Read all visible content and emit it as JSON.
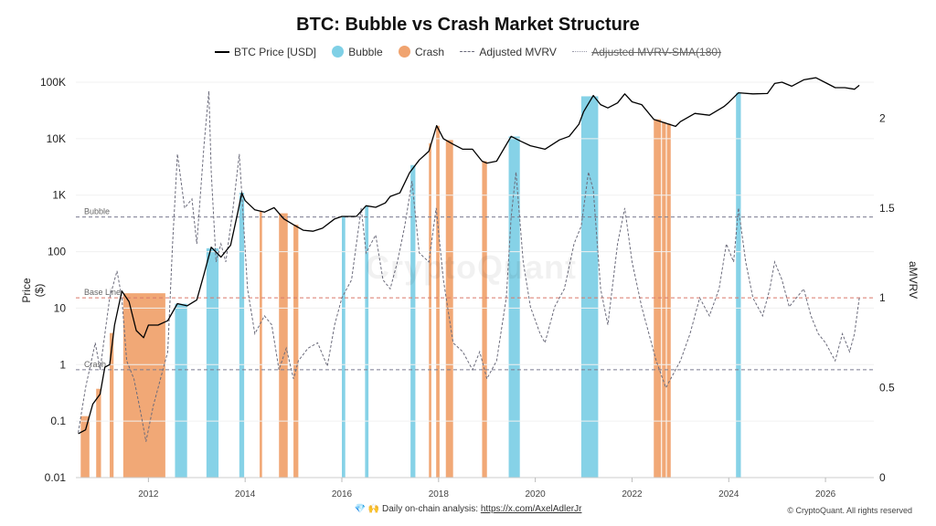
{
  "chart_data": {
    "type": "line",
    "title": "BTC: Bubble vs Crash Market Structure",
    "legend": [
      {
        "name": "BTC Price [USD]",
        "style": "line",
        "color": "#000000"
      },
      {
        "name": "Bubble",
        "style": "circle",
        "color": "#7fd0e6"
      },
      {
        "name": "Crash",
        "style": "circle",
        "color": "#f0a36f"
      },
      {
        "name": "Adjusted MVRV",
        "style": "dash",
        "color": "#6b6b7b"
      },
      {
        "name": "Adjusted MVRV-SMA(180)",
        "style": "dot",
        "color": "#9a9aaa",
        "hidden": true
      }
    ],
    "legend_position": "top-center",
    "x_axis": {
      "type": "date",
      "range": [
        "2010-07-01",
        "2026-12-31"
      ],
      "ticks": [
        "2012",
        "2014",
        "2016",
        "2018",
        "2020",
        "2022",
        "2024",
        "2026"
      ]
    },
    "y_left": {
      "label": "Price ($)",
      "scale": "log",
      "range": [
        0.01,
        100000
      ],
      "ticks": [
        "0.01",
        "0.1",
        "1",
        "10",
        "100",
        "1K",
        "10K",
        "100K"
      ]
    },
    "y_right": {
      "label": "aMVRV",
      "scale": "linear",
      "range": [
        0,
        2.2
      ],
      "ticks": [
        "0",
        "0.5",
        "1",
        "1.5",
        "2"
      ]
    },
    "thresholds": [
      {
        "label": "Bubble",
        "value": 1.45,
        "color": "#7b7b90"
      },
      {
        "label": "Base Line",
        "value": 1.0,
        "color": "#d9786a"
      },
      {
        "label": "Crash",
        "value": 0.6,
        "color": "#7b7b90"
      }
    ],
    "price_series": {
      "name": "BTC Price [USD]",
      "x": [
        2010.55,
        2010.7,
        2010.85,
        2011.0,
        2011.1,
        2011.2,
        2011.3,
        2011.45,
        2011.6,
        2011.75,
        2011.9,
        2012.0,
        2012.2,
        2012.4,
        2012.6,
        2012.8,
        2013.0,
        2013.15,
        2013.3,
        2013.5,
        2013.7,
        2013.85,
        2013.93,
        2014.0,
        2014.2,
        2014.4,
        2014.6,
        2014.8,
        2015.0,
        2015.2,
        2015.4,
        2015.6,
        2015.85,
        2016.0,
        2016.3,
        2016.5,
        2016.7,
        2016.9,
        2017.0,
        2017.2,
        2017.4,
        2017.6,
        2017.8,
        2017.96,
        2018.1,
        2018.3,
        2018.5,
        2018.7,
        2018.9,
        2019.0,
        2019.2,
        2019.5,
        2019.7,
        2019.9,
        2020.2,
        2020.5,
        2020.7,
        2020.9,
        2021.0,
        2021.2,
        2021.35,
        2021.5,
        2021.7,
        2021.85,
        2022.0,
        2022.2,
        2022.45,
        2022.6,
        2022.9,
        2023.0,
        2023.3,
        2023.6,
        2023.9,
        2024.0,
        2024.2,
        2024.5,
        2024.8,
        2024.95,
        2025.1,
        2025.3,
        2025.55,
        2025.8,
        2026.0,
        2026.2,
        2026.4,
        2026.6,
        2026.7
      ],
      "y": [
        0.06,
        0.07,
        0.2,
        0.3,
        0.9,
        1.0,
        5,
        20,
        13,
        4,
        3,
        5,
        5,
        6,
        12,
        11,
        14,
        40,
        120,
        80,
        130,
        500,
        1100,
        800,
        550,
        500,
        600,
        380,
        300,
        240,
        230,
        260,
        380,
        420,
        420,
        650,
        610,
        730,
        950,
        1100,
        2500,
        4200,
        6000,
        17000,
        10000,
        8000,
        6500,
        6500,
        4000,
        3700,
        4000,
        11000,
        9000,
        7500,
        6500,
        9500,
        11000,
        18000,
        30000,
        58000,
        40000,
        35000,
        43000,
        62000,
        45000,
        40000,
        22000,
        20000,
        16500,
        20000,
        28000,
        26000,
        37000,
        44000,
        65000,
        62000,
        63000,
        95000,
        100000,
        85000,
        110000,
        120000,
        98000,
        80000,
        80000,
        75000,
        88000
      ]
    },
    "mvrv_series": {
      "name": "Adjusted MVRV",
      "x": [
        2010.55,
        2010.7,
        2010.9,
        2011.0,
        2011.2,
        2011.35,
        2011.45,
        2011.55,
        2011.7,
        2011.85,
        2011.95,
        2012.1,
        2012.25,
        2012.4,
        2012.5,
        2012.6,
        2012.75,
        2012.9,
        2013.0,
        2013.15,
        2013.25,
        2013.3,
        2013.4,
        2013.5,
        2013.6,
        2013.75,
        2013.88,
        2013.95,
        2014.05,
        2014.2,
        2014.4,
        2014.55,
        2014.7,
        2014.85,
        2015.0,
        2015.1,
        2015.3,
        2015.5,
        2015.7,
        2015.85,
        2016.0,
        2016.2,
        2016.4,
        2016.5,
        2016.7,
        2016.85,
        2017.0,
        2017.15,
        2017.3,
        2017.45,
        2017.6,
        2017.8,
        2017.95,
        2018.1,
        2018.3,
        2018.5,
        2018.7,
        2018.85,
        2019.0,
        2019.2,
        2019.4,
        2019.5,
        2019.6,
        2019.75,
        2019.9,
        2020.1,
        2020.2,
        2020.4,
        2020.6,
        2020.8,
        2020.95,
        2021.1,
        2021.2,
        2021.35,
        2021.5,
        2021.7,
        2021.85,
        2022.0,
        2022.2,
        2022.4,
        2022.5,
        2022.7,
        2022.9,
        2023.0,
        2023.2,
        2023.4,
        2023.6,
        2023.8,
        2023.95,
        2024.1,
        2024.2,
        2024.35,
        2024.5,
        2024.7,
        2024.85,
        2024.95,
        2025.1,
        2025.25,
        2025.4,
        2025.55,
        2025.7,
        2025.85,
        2026.0,
        2026.2,
        2026.35,
        2026.5,
        2026.6,
        2026.7
      ],
      "y": [
        0.25,
        0.5,
        0.75,
        0.6,
        1.0,
        1.15,
        1.0,
        0.65,
        0.55,
        0.35,
        0.2,
        0.4,
        0.55,
        0.7,
        1.3,
        1.8,
        1.5,
        1.55,
        1.3,
        1.85,
        2.15,
        1.7,
        1.2,
        1.3,
        1.2,
        1.5,
        1.8,
        1.5,
        1.05,
        0.8,
        0.9,
        0.85,
        0.6,
        0.72,
        0.55,
        0.65,
        0.72,
        0.75,
        0.62,
        0.85,
        1.0,
        1.1,
        1.5,
        1.25,
        1.35,
        1.1,
        1.05,
        1.2,
        1.4,
        1.65,
        1.25,
        1.2,
        1.5,
        1.1,
        0.75,
        0.7,
        0.6,
        0.7,
        0.55,
        0.65,
        1.0,
        1.45,
        1.7,
        1.2,
        0.95,
        0.8,
        0.75,
        0.95,
        1.05,
        1.3,
        1.4,
        1.7,
        1.6,
        1.05,
        0.85,
        1.3,
        1.5,
        1.2,
        0.95,
        0.75,
        0.65,
        0.5,
        0.6,
        0.65,
        0.8,
        1.0,
        0.9,
        1.05,
        1.3,
        1.2,
        1.5,
        1.2,
        1.0,
        0.9,
        1.05,
        1.2,
        1.1,
        0.95,
        1.0,
        1.05,
        0.9,
        0.8,
        0.75,
        0.65,
        0.8,
        0.7,
        0.8,
        1.0
      ]
    },
    "bubble_bands": [
      [
        2012.55,
        2012.8
      ],
      [
        2013.2,
        2013.45
      ],
      [
        2013.88,
        2013.98
      ],
      [
        2016.0,
        2016.07
      ],
      [
        2016.48,
        2016.55
      ],
      [
        2017.42,
        2017.52
      ],
      [
        2019.45,
        2019.68
      ],
      [
        2020.95,
        2021.3
      ],
      [
        2024.15,
        2024.25
      ]
    ],
    "crash_bands": [
      [
        2010.6,
        2010.78
      ],
      [
        2010.92,
        2011.02
      ],
      [
        2011.2,
        2011.28
      ],
      [
        2011.48,
        2012.35
      ],
      [
        2014.3,
        2014.35
      ],
      [
        2014.7,
        2014.88
      ],
      [
        2015.0,
        2015.1
      ],
      [
        2017.8,
        2017.85
      ],
      [
        2017.95,
        2018.02
      ],
      [
        2018.15,
        2018.3
      ],
      [
        2018.9,
        2019.0
      ],
      [
        2022.45,
        2022.6
      ],
      [
        2022.62,
        2022.7
      ],
      [
        2022.72,
        2022.8
      ]
    ]
  },
  "watermark": "CryptoQuant",
  "footer": {
    "prefix": "💎 🙌 Daily on-chain analysis: ",
    "link": "https://x.com/AxelAdlerJr"
  },
  "copyright": "© CryptoQuant. All rights reserved"
}
